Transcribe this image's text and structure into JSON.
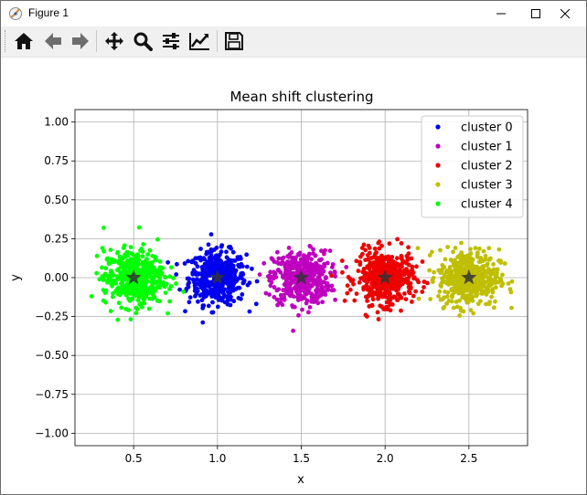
{
  "window": {
    "title": "Figure 1",
    "controls": [
      "minimize-icon",
      "maximize-icon",
      "close-icon"
    ]
  },
  "toolbar": {
    "buttons": [
      {
        "name": "home",
        "icon": "home-icon"
      },
      {
        "name": "back",
        "icon": "arrow-left-icon"
      },
      {
        "name": "forward",
        "icon": "arrow-right-icon"
      },
      {
        "name": "pan",
        "icon": "move-icon"
      },
      {
        "name": "zoom",
        "icon": "magnifier-icon"
      },
      {
        "name": "configure-subplots",
        "icon": "sliders-icon"
      },
      {
        "name": "edit-axis",
        "icon": "line-chart-icon"
      },
      {
        "name": "save",
        "icon": "floppy-disk-icon"
      }
    ]
  },
  "chart_data": {
    "type": "scatter",
    "title": "Mean shift clustering",
    "xlabel": "x",
    "ylabel": "y",
    "xlim": [
      0.15,
      2.85
    ],
    "ylim": [
      -1.08,
      1.08
    ],
    "xticks": [
      "0.5",
      "1.0",
      "1.5",
      "2.0",
      "2.5"
    ],
    "yticks": [
      "1.00",
      "0.75",
      "0.50",
      "0.25",
      "0.00",
      "−0.25",
      "−0.50",
      "−0.75",
      "−1.00"
    ],
    "grid": true,
    "legend_position": "top-right",
    "series": [
      {
        "name": "cluster 0",
        "color": "#0000ee",
        "center": [
          1.0,
          0.0
        ],
        "spread": 0.085
      },
      {
        "name": "cluster 1",
        "color": "#bf00bf",
        "center": [
          1.5,
          0.0
        ],
        "spread": 0.085
      },
      {
        "name": "cluster 2",
        "color": "#ee0000",
        "center": [
          2.0,
          0.0
        ],
        "spread": 0.085
      },
      {
        "name": "cluster 3",
        "color": "#bfbf00",
        "center": [
          2.5,
          0.0
        ],
        "spread": 0.09
      },
      {
        "name": "cluster 4",
        "color": "#00ff00",
        "center": [
          0.5,
          0.0
        ],
        "spread": 0.09
      }
    ],
    "centroids": [
      [
        1.0,
        0.0
      ],
      [
        1.5,
        0.0
      ],
      [
        2.0,
        0.0
      ],
      [
        2.5,
        0.0
      ],
      [
        0.5,
        0.0
      ]
    ],
    "centroid_marker": "star",
    "centroid_color": "#333333"
  }
}
